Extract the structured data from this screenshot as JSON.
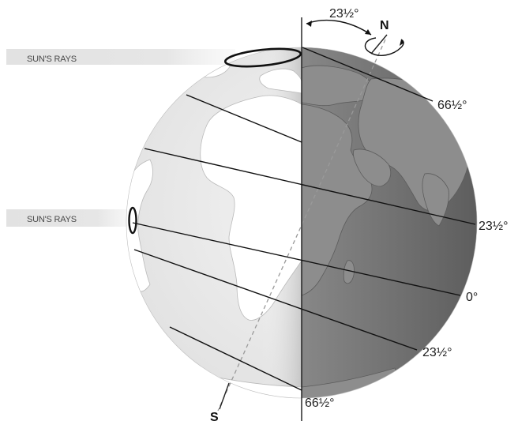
{
  "diagram": {
    "sun_rays_labels": [
      "SUN'S RAYS",
      "SUN'S RAYS"
    ],
    "tilt_angle_label": "23½°",
    "north_label": "N",
    "south_label": "S",
    "latitude_labels": {
      "arctic": "66½°",
      "tropic_north": "23½°",
      "equator": "0°",
      "tropic_south": "23½°",
      "antarctic": "66½°"
    },
    "colors": {
      "day_side": "#e9e9e9",
      "night_side": "#6f6f6f",
      "land_day": "#ffffff",
      "land_night": "#8a8a8a",
      "lines": "#111111",
      "rays": "#d9d9d9"
    }
  }
}
